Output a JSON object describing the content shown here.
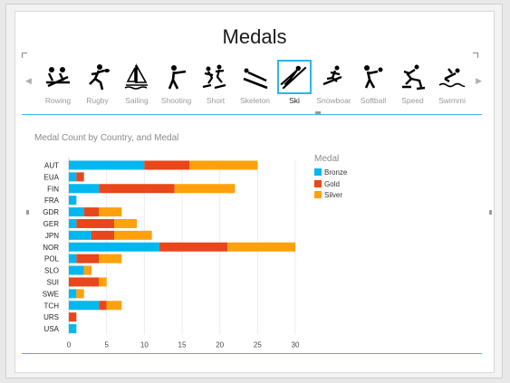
{
  "page": {
    "title": "Medals"
  },
  "slicer": {
    "prev_glyph": "◀",
    "next_glyph": "▶",
    "tiles": [
      {
        "label": "Rowing",
        "icon": "rowing-icon"
      },
      {
        "label": "Rugby",
        "icon": "rugby-icon"
      },
      {
        "label": "Sailing",
        "icon": "sailing-icon"
      },
      {
        "label": "Shooting",
        "icon": "shooting-icon"
      },
      {
        "label": "Short",
        "icon": "short-track-icon"
      },
      {
        "label": "Skeleton",
        "icon": "skeleton-icon"
      },
      {
        "label": "Ski",
        "icon": "ski-jump-icon",
        "selected": true
      },
      {
        "label": "Snowboar",
        "icon": "snowboard-icon"
      },
      {
        "label": "Softball",
        "icon": "softball-icon"
      },
      {
        "label": "Speed",
        "icon": "speed-skating-icon"
      },
      {
        "label": "Swimmi",
        "icon": "swimming-icon"
      }
    ],
    "accent_color": "#35b9e9"
  },
  "chart_data": {
    "type": "bar",
    "orientation": "horizontal",
    "stacked": true,
    "title": "Medal Count by Country, and Medal",
    "legend_title": "Medal",
    "legend_position": "right",
    "categories": [
      "AUT",
      "EUA",
      "FIN",
      "FRA",
      "GDR",
      "GER",
      "JPN",
      "NOR",
      "POL",
      "SLO",
      "SUI",
      "SWE",
      "TCH",
      "URS",
      "USA"
    ],
    "series": [
      {
        "name": "Bronze",
        "color": "#00b8ef",
        "values": [
          10,
          1,
          4,
          1,
          2,
          1,
          3,
          12,
          1,
          2,
          0,
          1,
          4,
          0,
          1
        ]
      },
      {
        "name": "Gold",
        "color": "#e8461b",
        "values": [
          6,
          1,
          10,
          0,
          2,
          5,
          3,
          9,
          3,
          0,
          4,
          0,
          1,
          1,
          0
        ]
      },
      {
        "name": "Silver",
        "color": "#ffa10c",
        "values": [
          9,
          0,
          8,
          0,
          3,
          3,
          5,
          9,
          3,
          1,
          1,
          1,
          2,
          0,
          0
        ]
      }
    ],
    "x_ticks": [
      "0",
      "5",
      "10",
      "15",
      "20",
      "25",
      "30"
    ],
    "xlim": [
      0,
      30
    ],
    "grid": true
  }
}
